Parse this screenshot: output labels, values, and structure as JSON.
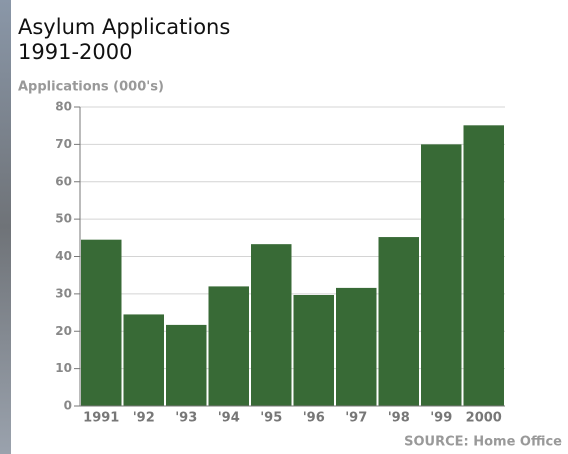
{
  "chart_data": {
    "type": "bar",
    "title": "Asylum Applications",
    "subtitle": "1991-2000",
    "y_label": "Applications (000's)",
    "source": "SOURCE: Home Office",
    "categories": [
      "1991",
      "'92",
      "'93",
      "'94",
      "'95",
      "'96",
      "'97",
      "'98",
      "'99",
      "2000"
    ],
    "values": [
      44.5,
      24.5,
      21.7,
      32,
      43.3,
      29.7,
      31.6,
      45.2,
      70,
      75.1
    ],
    "color": "#386a36",
    "ylim": [
      0,
      80
    ],
    "yticks": [
      0,
      10,
      20,
      30,
      40,
      50,
      60,
      70,
      80
    ],
    "grid": true
  }
}
